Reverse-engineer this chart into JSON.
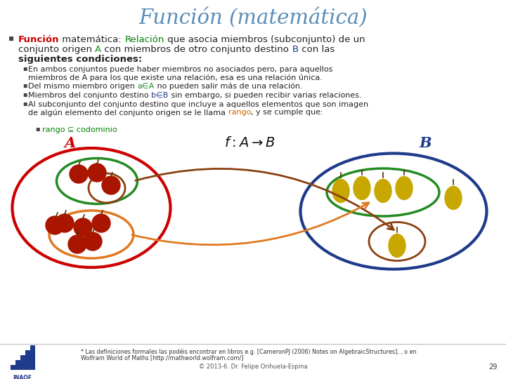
{
  "title": "Función (matemática)",
  "title_color": "#5B8DB8",
  "bg_color": "#FFFFFF",
  "bullet_color": "#222222",
  "funcion_color": "#CC0000",
  "relacion_color": "#008000",
  "A_color": "#228B22",
  "B_color": "#1E3A8A",
  "rango_color": "#CC6600",
  "sub_sub_color": "#008000",
  "footer_note1": "* Las definiciones formales las podéis encontrar en libros e.g. [CameronPJ (2006) Notes on AlgebraicStructures], , o en",
  "footer_note2": "Wolfram World of Maths [http://mathworld.wolfram.com/]",
  "footer_copy": "© 2013-6. Dr. Felipe Orihuela-Espina",
  "footer_page": "29",
  "outer_A_color": "#CC0000",
  "outer_B_color": "#1E3A8A",
  "inner_green_color": "#228B22",
  "inner_orange_color": "#E07820",
  "inner_brown_color": "#8B4010",
  "arrow_brown_color": "#8B4010",
  "arrow_orange_color": "#E07820",
  "label_A_color": "#CC0000",
  "label_B_color": "#1E3A8A",
  "apple_color": "#AA1500",
  "pear_color": "#C8A800"
}
